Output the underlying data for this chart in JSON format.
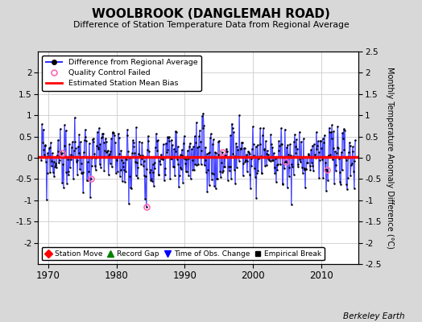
{
  "title": "WOOLBROOK (DANGLEMAH ROAD)",
  "subtitle": "Difference of Station Temperature Data from Regional Average",
  "ylabel": "Monthly Temperature Anomaly Difference (°C)",
  "xlabel_years": [
    1970,
    1980,
    1990,
    2000,
    2010
  ],
  "ylim": [
    -2.5,
    2.5
  ],
  "xlim": [
    1968.5,
    2015.5
  ],
  "yticks_left": [
    -2,
    -1.5,
    -1,
    -0.5,
    0,
    0.5,
    1,
    1.5,
    2
  ],
  "yticks_right": [
    -2.5,
    -2,
    -1.5,
    -1,
    -0.5,
    0,
    0.5,
    1,
    1.5,
    2,
    2.5
  ],
  "mean_bias": 0.02,
  "background_color": "#d8d8d8",
  "plot_bg_color": "#ffffff",
  "line_color": "#3333ff",
  "stem_color": "#8888ff",
  "marker_color": "#000000",
  "bias_line_color": "#ff0000",
  "qc_color": "#ff69b4",
  "seed": 99,
  "n_points": 540,
  "start_year": 1969.0,
  "end_year": 2015.0,
  "watermark": "Berkeley Earth",
  "grid_color": "#cccccc"
}
